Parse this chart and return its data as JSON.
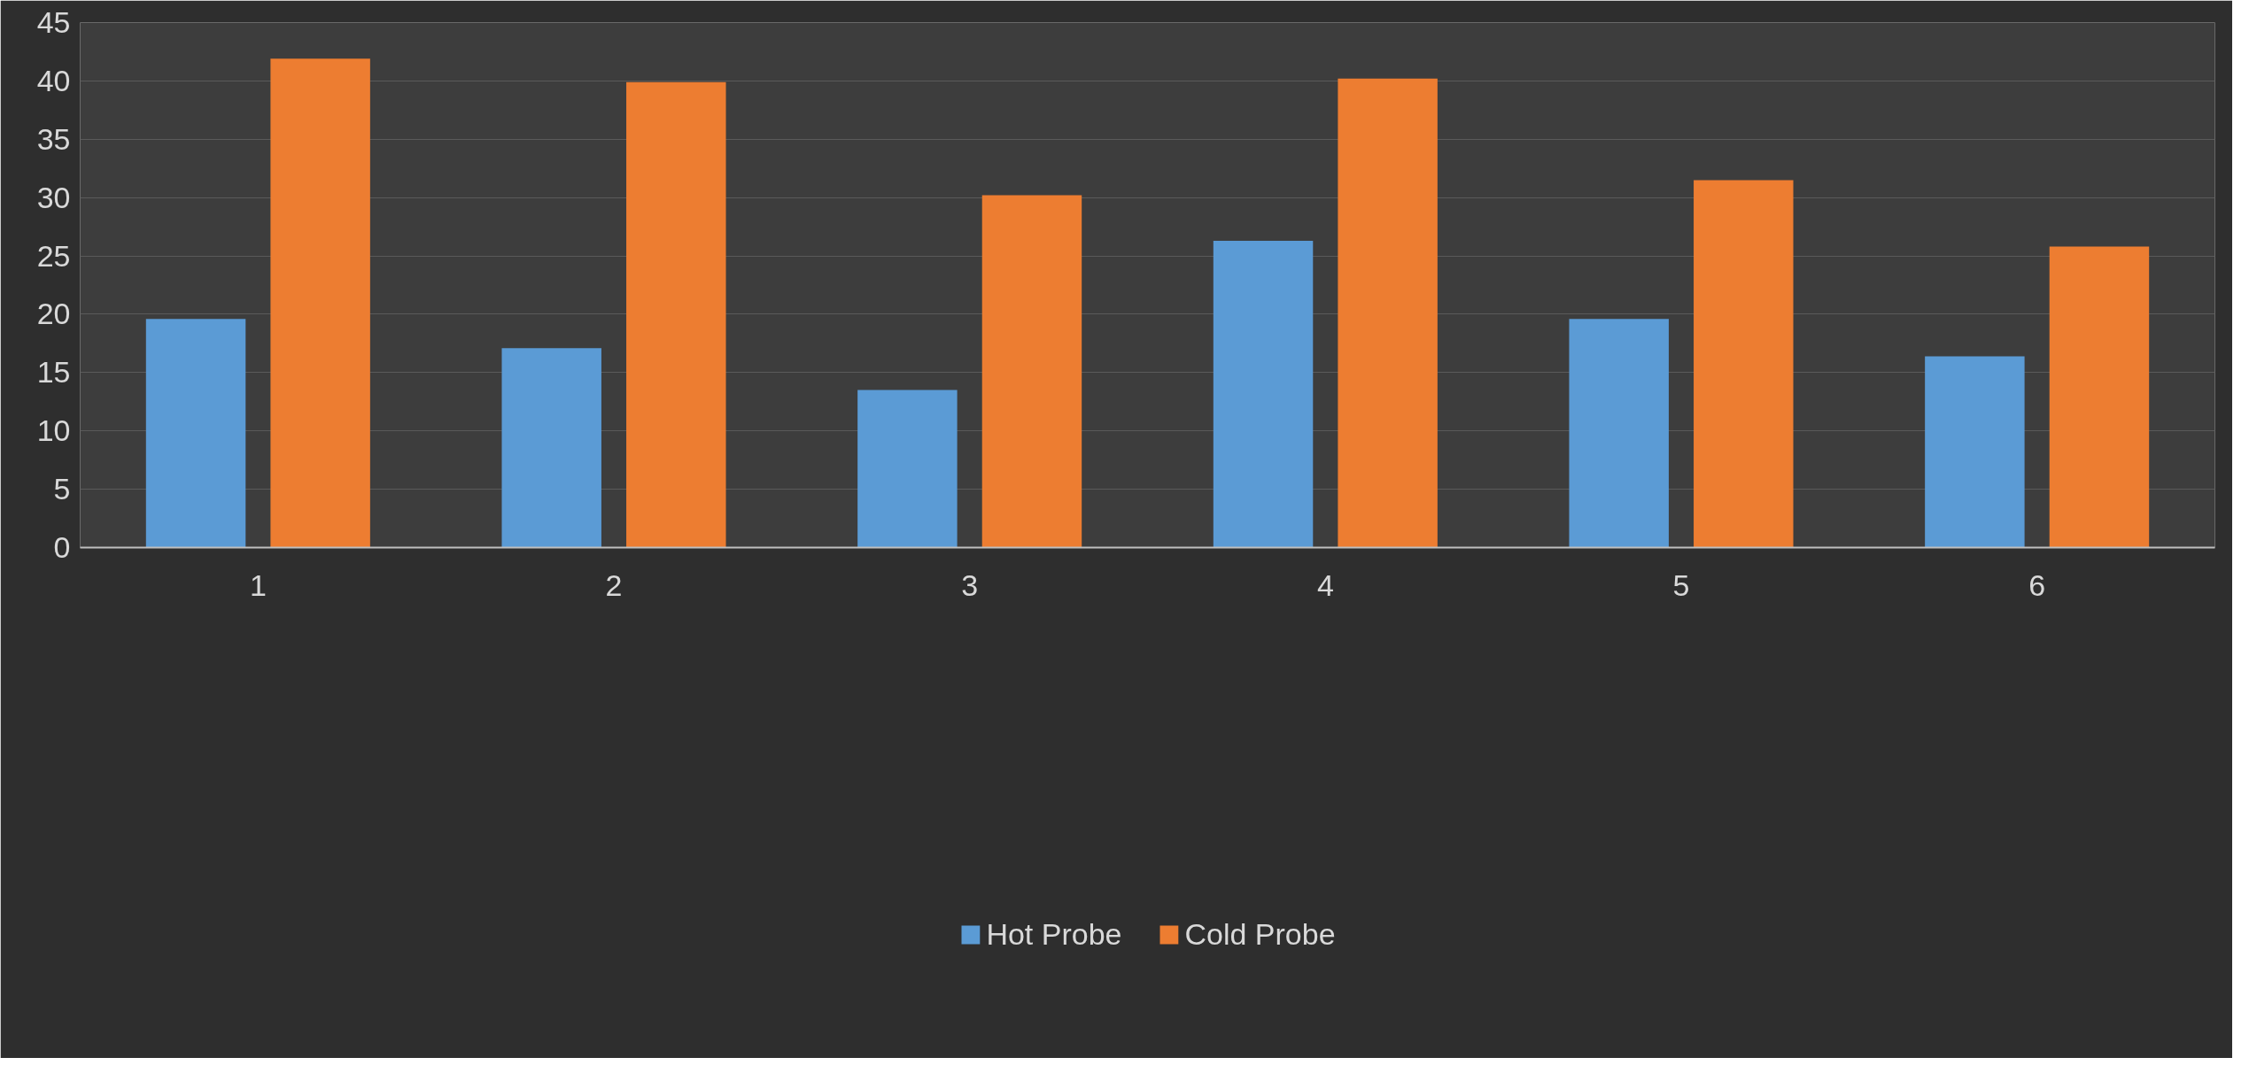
{
  "chart_data": {
    "type": "bar",
    "categories": [
      "1",
      "2",
      "3",
      "4",
      "5",
      "6"
    ],
    "series": [
      {
        "name": "Hot Probe",
        "color": "#5b9bd5",
        "values": [
          19.6,
          17.1,
          13.5,
          26.3,
          19.6,
          16.4
        ]
      },
      {
        "name": "Cold Probe",
        "color": "#ed7d31",
        "values": [
          41.9,
          39.9,
          30.2,
          40.2,
          31.5,
          25.8
        ]
      }
    ],
    "ylim": [
      0,
      45
    ],
    "yticks": [
      0,
      5,
      10,
      15,
      20,
      25,
      30,
      35,
      40,
      45
    ],
    "grid": "y",
    "legend": "bottom"
  }
}
